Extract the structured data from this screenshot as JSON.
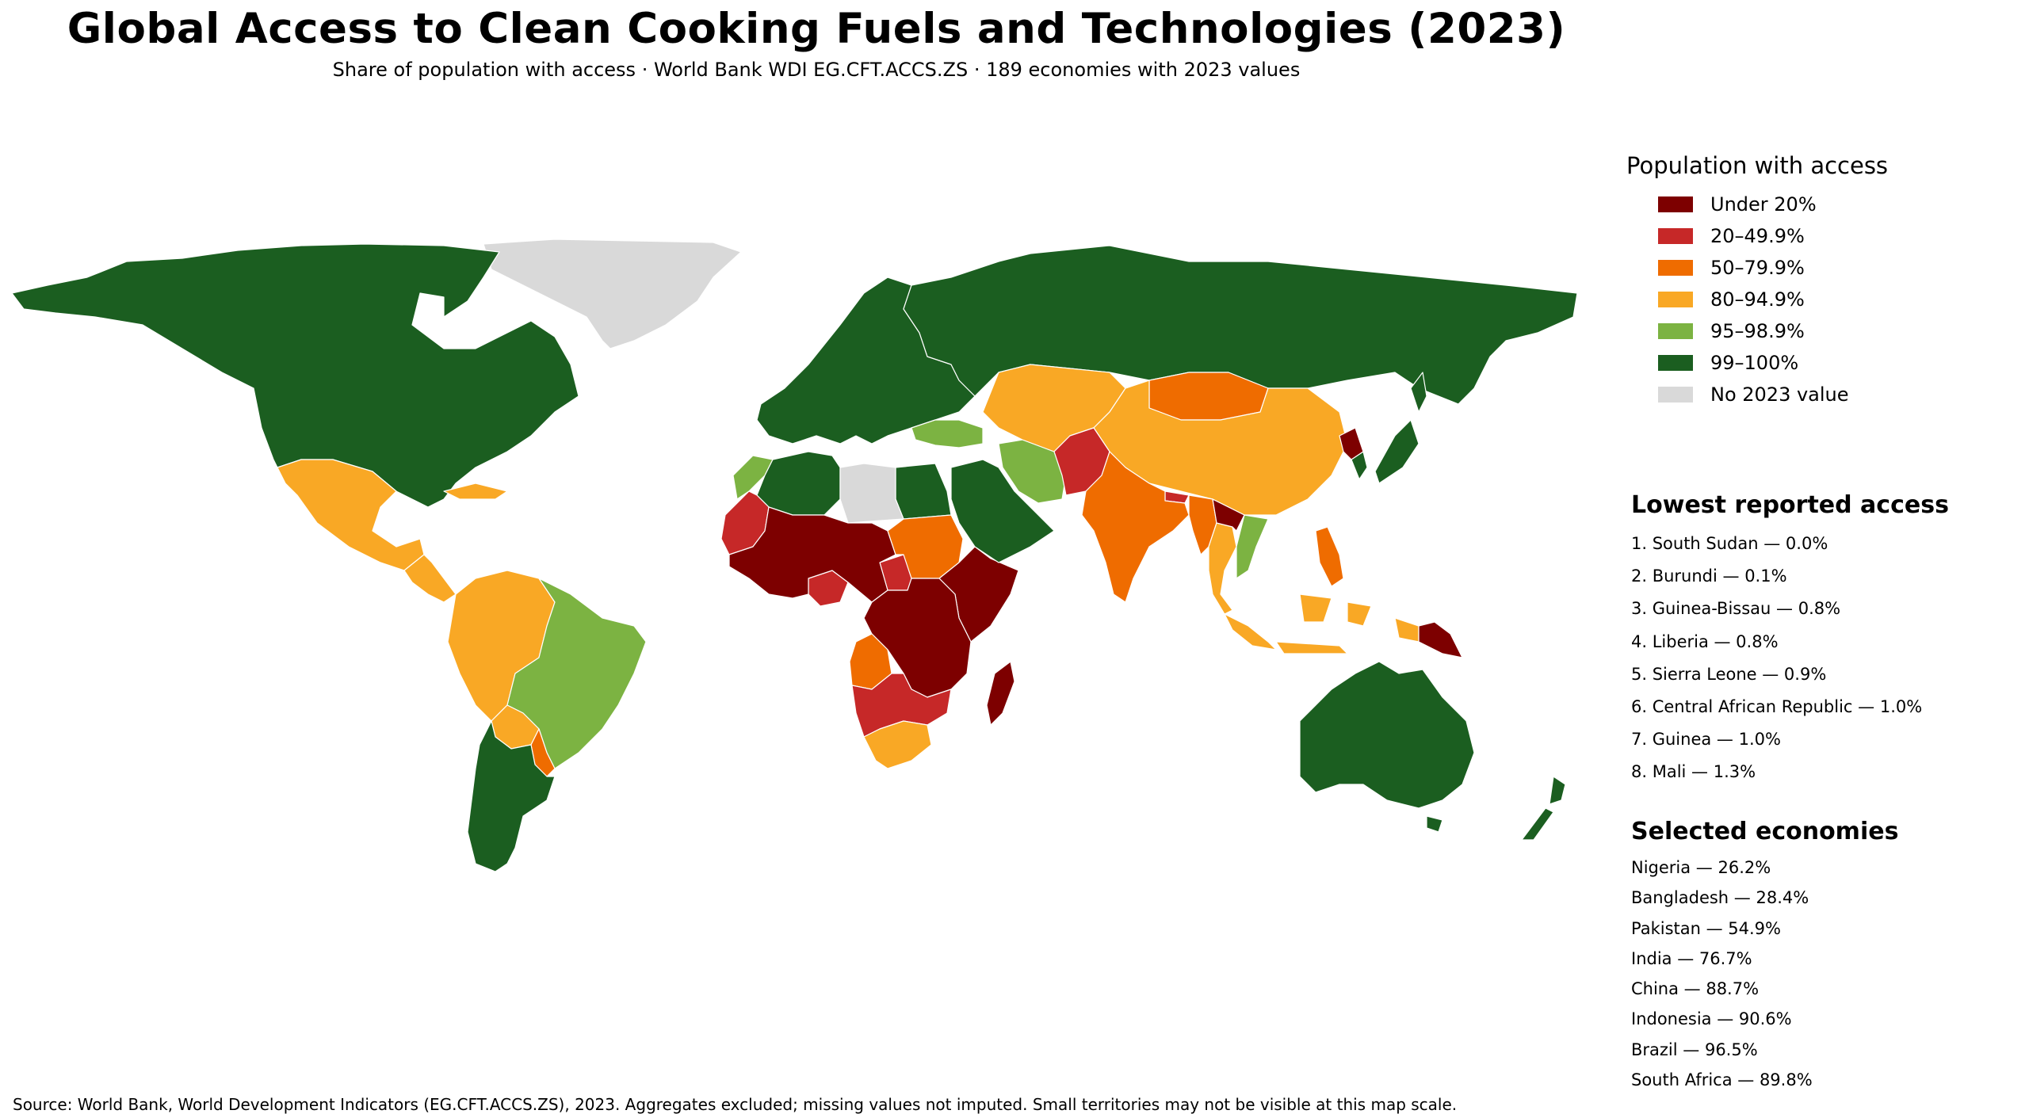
{
  "title": "Global Access to Clean Cooking Fuels and Technologies (2023)",
  "subtitle": "Share of population with access · World Bank WDI EG.CFT.ACCS.ZS · 189 economies with 2023 values",
  "legend": {
    "title": "Population with access",
    "items": [
      {
        "label": "Under 20%",
        "color": "#7d0000"
      },
      {
        "label": "20–49.9%",
        "color": "#c62828"
      },
      {
        "label": "50–79.9%",
        "color": "#ef6c00"
      },
      {
        "label": "80–94.9%",
        "color": "#f9a825"
      },
      {
        "label": "95–98.9%",
        "color": "#7cb342"
      },
      {
        "label": "99–100%",
        "color": "#1b5e20"
      },
      {
        "label": "No 2023 value",
        "color": "#d9d9d9"
      }
    ]
  },
  "lowest": {
    "title": "Lowest reported access",
    "items": [
      "1. South Sudan — 0.0%",
      "2. Burundi — 0.1%",
      "3. Guinea-Bissau — 0.8%",
      "4. Liberia — 0.8%",
      "5. Sierra Leone — 0.9%",
      "6. Central African Republic — 1.0%",
      "7. Guinea — 1.0%",
      "8. Mali — 1.3%"
    ]
  },
  "selected": {
    "title": "Selected economies",
    "items": [
      "Nigeria — 26.2%",
      "Bangladesh — 28.4%",
      "Pakistan — 54.9%",
      "India — 76.7%",
      "China — 88.7%",
      "Indonesia — 90.6%",
      "Brazil — 96.5%",
      "South Africa — 89.8%"
    ]
  },
  "source": "Source: World Bank, World Development Indicators (EG.CFT.ACCS.ZS), 2023. Aggregates excluded; missing values not imputed. Small territories may not be visible at this map scale.",
  "map": {
    "regions": [
      {
        "name": "greenland",
        "color": "#d9d9d9"
      },
      {
        "name": "north-america",
        "color": "#1b5e20"
      },
      {
        "name": "mexico",
        "color": "#f9a825"
      },
      {
        "name": "central-america",
        "color": "#f9a825"
      },
      {
        "name": "south-america-north",
        "color": "#f9a825"
      },
      {
        "name": "brazil",
        "color": "#7cb342"
      },
      {
        "name": "bolivia",
        "color": "#f9a825"
      },
      {
        "name": "paraguay",
        "color": "#ef6c00"
      },
      {
        "name": "southern-cone",
        "color": "#1b5e20"
      },
      {
        "name": "europe",
        "color": "#1b5e20"
      },
      {
        "name": "russia",
        "color": "#1b5e20"
      },
      {
        "name": "north-africa",
        "color": "#1b5e20"
      },
      {
        "name": "morocco",
        "color": "#7cb342"
      },
      {
        "name": "libya",
        "color": "#d9d9d9"
      },
      {
        "name": "west-africa-north",
        "color": "#c62828"
      },
      {
        "name": "sahel",
        "color": "#7d0000"
      },
      {
        "name": "sudan",
        "color": "#ef6c00"
      },
      {
        "name": "horn-of-africa",
        "color": "#7d0000"
      },
      {
        "name": "central-africa",
        "color": "#7d0000"
      },
      {
        "name": "angola",
        "color": "#ef6c00"
      },
      {
        "name": "southern-africa",
        "color": "#c62828"
      },
      {
        "name": "south-africa",
        "color": "#f9a825"
      },
      {
        "name": "madagascar",
        "color": "#7d0000"
      },
      {
        "name": "middle-east",
        "color": "#1b5e20"
      },
      {
        "name": "turkey",
        "color": "#7cb342"
      },
      {
        "name": "iran",
        "color": "#7cb342"
      },
      {
        "name": "central-asia",
        "color": "#f9a825"
      },
      {
        "name": "mongolia",
        "color": "#ef6c00"
      },
      {
        "name": "china",
        "color": "#f9a825"
      },
      {
        "name": "pakistan-afghanistan",
        "color": "#c62828"
      },
      {
        "name": "india",
        "color": "#ef6c00"
      },
      {
        "name": "myanmar",
        "color": "#ef6c00"
      },
      {
        "name": "southeast-asia",
        "color": "#f9a825"
      },
      {
        "name": "vietnam",
        "color": "#7cb342"
      },
      {
        "name": "laos",
        "color": "#7d0000"
      },
      {
        "name": "korea-japan",
        "color": "#1b5e20"
      },
      {
        "name": "north-korea",
        "color": "#7d0000"
      },
      {
        "name": "philippines",
        "color": "#ef6c00"
      },
      {
        "name": "indonesia",
        "color": "#f9a825"
      },
      {
        "name": "papua-new-guinea",
        "color": "#7d0000"
      },
      {
        "name": "australia",
        "color": "#1b5e20"
      },
      {
        "name": "new-zealand",
        "color": "#1b5e20"
      }
    ]
  }
}
